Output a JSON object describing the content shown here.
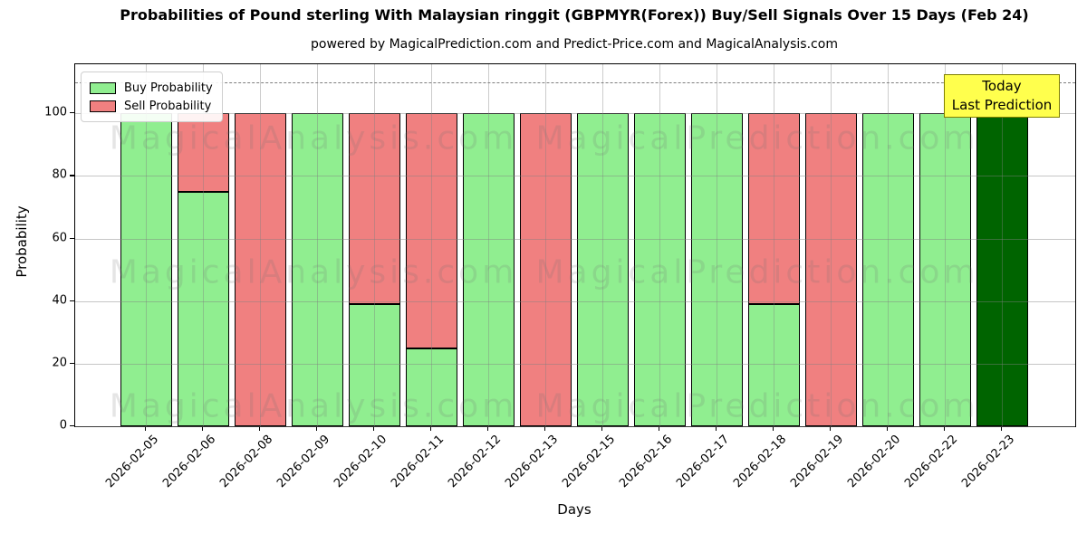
{
  "title": "Probabilities of Pound sterling With Malaysian ringgit (GBPMYR(Forex)) Buy/Sell Signals Over 15 Days (Feb 24)",
  "subtitle": "powered by MagicalPrediction.com and Predict-Price.com and MagicalAnalysis.com",
  "annotation": {
    "line1": "Today",
    "line2": "Last Prediction",
    "bg_color": "#ffff4d",
    "border_color": "#7f7f00"
  },
  "legend": {
    "items": [
      {
        "label": "Buy Probability",
        "color": "#90ee90"
      },
      {
        "label": "Sell Probability",
        "color": "#f08080"
      }
    ]
  },
  "watermarks": [
    "MagicalAnalysis.com",
    "MagicalPrediction.com"
  ],
  "chart_data": {
    "type": "bar",
    "stacked": true,
    "title": "Probabilities of Pound sterling With Malaysian ringgit (GBPMYR(Forex)) Buy/Sell Signals Over 15 Days (Feb 24)",
    "xlabel": "Days",
    "ylabel": "Probability",
    "categories": [
      "2026-02-05",
      "2026-02-06",
      "2026-02-08",
      "2026-02-09",
      "2026-02-10",
      "2026-02-11",
      "2026-02-12",
      "2026-02-13",
      "2026-02-15",
      "2026-02-16",
      "2026-02-17",
      "2026-02-18",
      "2026-02-19",
      "2026-02-20",
      "2026-02-22",
      "2026-02-23"
    ],
    "series": [
      {
        "name": "Buy Probability",
        "color": "#90ee90",
        "values": [
          100,
          75,
          0,
          100,
          39,
          25,
          100,
          0,
          100,
          100,
          100,
          39,
          0,
          100,
          100,
          100
        ]
      },
      {
        "name": "Sell Probability",
        "color": "#f08080",
        "values": [
          0,
          25,
          100,
          0,
          61,
          75,
          0,
          100,
          0,
          0,
          0,
          61,
          100,
          0,
          0,
          0
        ]
      }
    ],
    "today_index": 15,
    "today_color": "#006400",
    "yticks": [
      0,
      20,
      40,
      60,
      80,
      100
    ],
    "ylim": [
      0,
      116
    ],
    "dashed_line_y": 110,
    "grid": true,
    "legend_position": "upper left"
  }
}
